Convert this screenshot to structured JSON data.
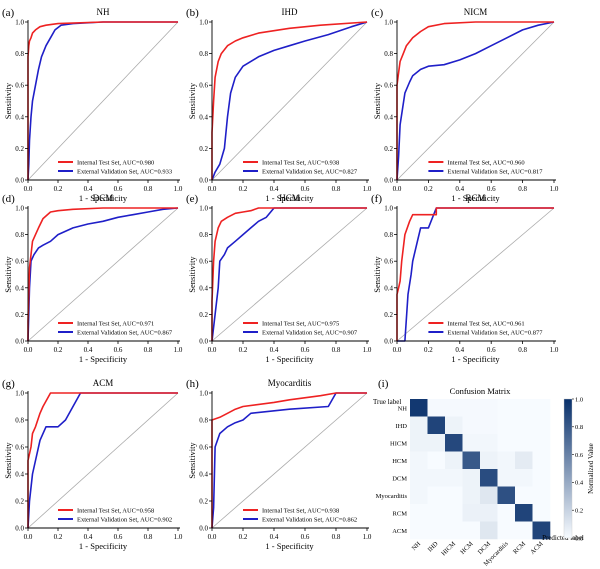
{
  "figure": {
    "colors": {
      "internal": "#ee2222",
      "external": "#1f1fc8",
      "diagonal": "#aaaaaa",
      "axis": "#000000"
    },
    "cm_colors": {
      "low": "#f7fbff",
      "high": "#08306b"
    }
  },
  "chart_data": [
    {
      "panel": "(a)",
      "title": "NH",
      "type": "line",
      "xlabel": "1 - Specificity",
      "ylabel": "Sensitivity",
      "xlim": [
        0,
        1
      ],
      "ylim": [
        0,
        1
      ],
      "xticks": [
        "0.0",
        "0.2",
        "0.4",
        "0.6",
        "0.8",
        "1.0"
      ],
      "yticks": [
        "0.0",
        "0.2",
        "0.4",
        "0.6",
        "0.8",
        "1.0"
      ],
      "legend": [
        "Internal Test Set, AUC=0.980",
        "External Validation Set, AUC=0.933"
      ],
      "series": [
        {
          "name": "Internal Test Set",
          "auc": 0.98,
          "x": [
            0,
            0,
            0.005,
            0.01,
            0.02,
            0.03,
            0.05,
            0.08,
            0.12,
            0.2,
            0.5,
            1.0
          ],
          "y": [
            0,
            0.78,
            0.85,
            0.88,
            0.9,
            0.93,
            0.95,
            0.97,
            0.98,
            0.99,
            1.0,
            1.0
          ]
        },
        {
          "name": "External Validation Set",
          "auc": 0.933,
          "x": [
            0,
            0.005,
            0.01,
            0.02,
            0.03,
            0.05,
            0.07,
            0.09,
            0.12,
            0.15,
            0.18,
            0.22,
            0.3,
            0.5,
            1.0
          ],
          "y": [
            0,
            0.1,
            0.25,
            0.4,
            0.5,
            0.6,
            0.7,
            0.78,
            0.85,
            0.9,
            0.95,
            0.98,
            0.99,
            1.0,
            1.0
          ]
        }
      ]
    },
    {
      "panel": "(b)",
      "title": "IHD",
      "type": "line",
      "xlabel": "1 - Specificity",
      "ylabel": "Sensitivity",
      "xlim": [
        0,
        1
      ],
      "ylim": [
        0,
        1
      ],
      "xticks": [
        "0.0",
        "0.2",
        "0.4",
        "0.6",
        "0.8",
        "1.0"
      ],
      "yticks": [
        "0.0",
        "0.2",
        "0.4",
        "0.6",
        "0.8",
        "1.0"
      ],
      "legend": [
        "Internal Test Set, AUC=0.938",
        "External Validation Set, AUC=0.827"
      ],
      "series": [
        {
          "name": "Internal Test Set",
          "auc": 0.938,
          "x": [
            0,
            0,
            0.01,
            0.02,
            0.04,
            0.06,
            0.1,
            0.15,
            0.2,
            0.3,
            0.5,
            0.7,
            1.0
          ],
          "y": [
            0,
            0.3,
            0.5,
            0.65,
            0.75,
            0.8,
            0.85,
            0.88,
            0.9,
            0.93,
            0.96,
            0.98,
            1.0
          ]
        },
        {
          "name": "External Validation Set",
          "auc": 0.827,
          "x": [
            0,
            0.02,
            0.05,
            0.08,
            0.1,
            0.12,
            0.15,
            0.2,
            0.3,
            0.4,
            0.5,
            0.6,
            0.75,
            0.9,
            1.0
          ],
          "y": [
            0,
            0.05,
            0.1,
            0.2,
            0.4,
            0.55,
            0.65,
            0.72,
            0.78,
            0.82,
            0.85,
            0.88,
            0.92,
            0.97,
            1.0
          ]
        }
      ]
    },
    {
      "panel": "(c)",
      "title": "NICM",
      "type": "line",
      "xlabel": "1 - Specificity",
      "ylabel": "Sensitivity",
      "xlim": [
        0,
        1
      ],
      "ylim": [
        0,
        1
      ],
      "xticks": [
        "0.0",
        "0.2",
        "0.4",
        "0.6",
        "0.8",
        "1.0"
      ],
      "yticks": [
        "0.0",
        "0.2",
        "0.4",
        "0.6",
        "0.8",
        "1.0"
      ],
      "legend": [
        "Internal Test Set, AUC=0.960",
        "External Validation Set, AUC=0.817"
      ],
      "series": [
        {
          "name": "Internal Test Set",
          "auc": 0.96,
          "x": [
            0,
            0,
            0.01,
            0.02,
            0.04,
            0.06,
            0.1,
            0.15,
            0.2,
            0.3,
            0.5,
            1.0
          ],
          "y": [
            0,
            0.6,
            0.68,
            0.75,
            0.8,
            0.85,
            0.9,
            0.94,
            0.97,
            0.99,
            1.0,
            1.0
          ]
        },
        {
          "name": "External Validation Set",
          "auc": 0.817,
          "x": [
            0,
            0.01,
            0.02,
            0.05,
            0.08,
            0.1,
            0.15,
            0.2,
            0.3,
            0.4,
            0.5,
            0.6,
            0.7,
            0.8,
            0.9,
            1.0
          ],
          "y": [
            0,
            0.15,
            0.35,
            0.55,
            0.62,
            0.66,
            0.7,
            0.72,
            0.73,
            0.76,
            0.8,
            0.85,
            0.9,
            0.95,
            0.98,
            1.0
          ]
        }
      ]
    },
    {
      "panel": "(d)",
      "title": "DCM",
      "type": "line",
      "xlabel": "1 - Specificity",
      "ylabel": "Sensitivity",
      "xlim": [
        0,
        1
      ],
      "ylim": [
        0,
        1
      ],
      "xticks": [
        "0.0",
        "0.2",
        "0.4",
        "0.6",
        "0.8",
        "1.0"
      ],
      "yticks": [
        "0.0",
        "0.2",
        "0.4",
        "0.6",
        "0.8",
        "1.0"
      ],
      "legend": [
        "Internal Test Set, AUC=0.971",
        "External Validation Set, AUC=0.867"
      ],
      "series": [
        {
          "name": "Internal Test Set",
          "auc": 0.971,
          "x": [
            0,
            0,
            0.01,
            0.02,
            0.03,
            0.05,
            0.07,
            0.1,
            0.15,
            0.2,
            0.3,
            0.5,
            1.0
          ],
          "y": [
            0,
            0.15,
            0.55,
            0.65,
            0.75,
            0.8,
            0.85,
            0.92,
            0.97,
            0.98,
            0.99,
            1.0,
            1.0
          ]
        },
        {
          "name": "External Validation Set",
          "auc": 0.867,
          "x": [
            0,
            0.01,
            0.02,
            0.04,
            0.07,
            0.1,
            0.15,
            0.2,
            0.3,
            0.4,
            0.5,
            0.6,
            0.7,
            0.8,
            0.9,
            1.0
          ],
          "y": [
            0,
            0.4,
            0.6,
            0.65,
            0.7,
            0.72,
            0.75,
            0.8,
            0.85,
            0.88,
            0.9,
            0.93,
            0.95,
            0.97,
            0.99,
            1.0
          ]
        }
      ]
    },
    {
      "panel": "(e)",
      "title": "HCM",
      "type": "line",
      "xlabel": "1 - Specificity",
      "ylabel": "Sensitivity",
      "xlim": [
        0,
        1
      ],
      "ylim": [
        0,
        1
      ],
      "xticks": [
        "0.0",
        "0.2",
        "0.4",
        "0.6",
        "0.8",
        "1.0"
      ],
      "yticks": [
        "0.0",
        "0.2",
        "0.4",
        "0.6",
        "0.8",
        "1.0"
      ],
      "legend": [
        "Internal Test Set, AUC=0.975",
        "External Validation Set, AUC=0.907"
      ],
      "series": [
        {
          "name": "Internal Test Set",
          "auc": 0.975,
          "x": [
            0,
            0,
            0.01,
            0.02,
            0.04,
            0.06,
            0.1,
            0.15,
            0.2,
            0.25,
            0.3,
            0.5,
            1.0
          ],
          "y": [
            0,
            0.3,
            0.6,
            0.75,
            0.85,
            0.9,
            0.93,
            0.96,
            0.97,
            0.98,
            1.0,
            1.0,
            1.0
          ]
        },
        {
          "name": "External Validation Set",
          "auc": 0.907,
          "x": [
            0,
            0.02,
            0.04,
            0.05,
            0.08,
            0.1,
            0.15,
            0.2,
            0.25,
            0.3,
            0.35,
            0.4,
            0.6,
            1.0
          ],
          "y": [
            0,
            0.2,
            0.4,
            0.6,
            0.65,
            0.7,
            0.75,
            0.8,
            0.85,
            0.9,
            0.93,
            1.0,
            1.0,
            1.0
          ]
        }
      ]
    },
    {
      "panel": "(f)",
      "title": "RCM",
      "type": "line",
      "xlabel": "1 - Specificity",
      "ylabel": "Sensitivity",
      "xlim": [
        0,
        1
      ],
      "ylim": [
        0,
        1
      ],
      "xticks": [
        "0.0",
        "0.2",
        "0.4",
        "0.6",
        "0.8",
        "1.0"
      ],
      "yticks": [
        "0.0",
        "0.2",
        "0.4",
        "0.6",
        "0.8",
        "1.0"
      ],
      "legend": [
        "Internal Test Set, AUC=0.961",
        "External Validation Set, AUC=0.877"
      ],
      "series": [
        {
          "name": "Internal Test Set",
          "auc": 0.961,
          "x": [
            0,
            0,
            0.01,
            0.02,
            0.03,
            0.05,
            0.08,
            0.1,
            0.25,
            0.25,
            1.0
          ],
          "y": [
            0,
            0.35,
            0.4,
            0.45,
            0.6,
            0.8,
            0.9,
            0.95,
            0.95,
            1.0,
            1.0
          ]
        },
        {
          "name": "External Validation Set",
          "auc": 0.877,
          "x": [
            0,
            0.05,
            0.07,
            0.09,
            0.1,
            0.13,
            0.15,
            0.2,
            0.25,
            1.0
          ],
          "y": [
            0,
            0.0,
            0.35,
            0.5,
            0.6,
            0.75,
            0.85,
            0.85,
            1.0,
            1.0
          ]
        }
      ]
    },
    {
      "panel": "(g)",
      "title": "ACM",
      "type": "line",
      "xlabel": "1 - Specificity",
      "ylabel": "Sensitivity",
      "xlim": [
        0,
        1
      ],
      "ylim": [
        0,
        1
      ],
      "xticks": [
        "0.0",
        "0.2",
        "0.4",
        "0.6",
        "0.8",
        "1.0"
      ],
      "yticks": [
        "0.0",
        "0.2",
        "0.4",
        "0.6",
        "0.8",
        "1.0"
      ],
      "legend": [
        "Internal Test Set, AUC=0.958",
        "External Validation Set, AUC=0.902"
      ],
      "series": [
        {
          "name": "Internal Test Set",
          "auc": 0.958,
          "x": [
            0,
            0,
            0.02,
            0.03,
            0.05,
            0.08,
            0.1,
            0.15,
            0.2,
            1.0
          ],
          "y": [
            0,
            0.5,
            0.6,
            0.7,
            0.75,
            0.85,
            0.9,
            1.0,
            1.0,
            1.0
          ]
        },
        {
          "name": "External Validation Set",
          "auc": 0.902,
          "x": [
            0,
            0.01,
            0.03,
            0.05,
            0.08,
            0.12,
            0.2,
            0.25,
            0.3,
            0.35,
            1.0
          ],
          "y": [
            0,
            0.2,
            0.4,
            0.5,
            0.65,
            0.75,
            0.75,
            0.8,
            0.9,
            1.0,
            1.0
          ]
        }
      ]
    },
    {
      "panel": "(h)",
      "title": "Myocarditis",
      "type": "line",
      "xlabel": "1 - Specificity",
      "ylabel": "Sensitivity",
      "xlim": [
        0,
        1
      ],
      "ylim": [
        0,
        1
      ],
      "xticks": [
        "0.0",
        "0.2",
        "0.4",
        "0.6",
        "0.8",
        "1.0"
      ],
      "yticks": [
        "0.0",
        "0.2",
        "0.4",
        "0.6",
        "0.8",
        "1.0"
      ],
      "legend": [
        "Internal Test Set, AUC=0.938",
        "External Validation Set, AUC=0.862"
      ],
      "series": [
        {
          "name": "Internal Test Set",
          "auc": 0.938,
          "x": [
            0,
            0,
            0.05,
            0.1,
            0.15,
            0.2,
            0.4,
            0.5,
            0.7,
            0.8,
            1.0
          ],
          "y": [
            0,
            0.8,
            0.82,
            0.85,
            0.88,
            0.9,
            0.93,
            0.95,
            0.98,
            1.0,
            1.0
          ]
        },
        {
          "name": "External Validation Set",
          "auc": 0.862,
          "x": [
            0,
            0.01,
            0.02,
            0.05,
            0.1,
            0.15,
            0.2,
            0.25,
            0.5,
            0.75,
            0.8,
            1.0
          ],
          "y": [
            0,
            0.15,
            0.6,
            0.7,
            0.75,
            0.78,
            0.8,
            0.85,
            0.88,
            0.9,
            1.0,
            1.0
          ]
        }
      ]
    },
    {
      "panel": "(i)",
      "title": "Confusion Matrix",
      "type": "heatmap",
      "ylabel": "True label",
      "xlabel": "Predicted label",
      "colorbar_label": "Normalized Value",
      "colorbar_ticks": [
        "0.0",
        "0.2",
        "0.4",
        "0.6",
        "0.8",
        "1.0"
      ],
      "labels": [
        "NH",
        "IHD",
        "HICM",
        "HCM",
        "DCM",
        "Myocarditis",
        "RCM",
        "ACM"
      ],
      "matrix": [
        [
          0.96,
          0.01,
          0.01,
          0.01,
          0.01,
          0.0,
          0.0,
          0.0
        ],
        [
          0.04,
          0.9,
          0.04,
          0.01,
          0.01,
          0.0,
          0.0,
          0.0
        ],
        [
          0.04,
          0.04,
          0.88,
          0.02,
          0.02,
          0.0,
          0.0,
          0.0
        ],
        [
          0.02,
          0.0,
          0.04,
          0.8,
          0.04,
          0.02,
          0.08,
          0.0
        ],
        [
          0.02,
          0.02,
          0.02,
          0.04,
          0.86,
          0.02,
          0.02,
          0.0
        ],
        [
          0.02,
          0.0,
          0.0,
          0.04,
          0.1,
          0.84,
          0.0,
          0.0
        ],
        [
          0.0,
          0.0,
          0.0,
          0.05,
          0.05,
          0.0,
          0.9,
          0.0
        ],
        [
          0.0,
          0.0,
          0.0,
          0.0,
          0.1,
          0.0,
          0.0,
          0.9
        ]
      ]
    }
  ]
}
